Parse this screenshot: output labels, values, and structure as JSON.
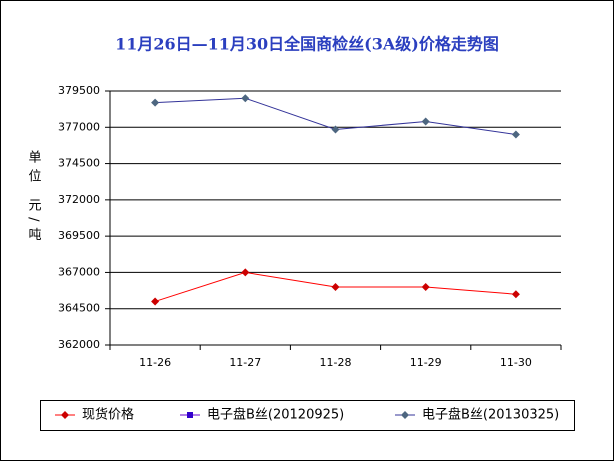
{
  "chart_data": {
    "type": "line",
    "title": "11月26日—11月30日全国商检丝(3A级)价格走势图",
    "y_label": "单位 元/吨",
    "categories": [
      "11-26",
      "11-27",
      "11-28",
      "11-29",
      "11-30"
    ],
    "series": [
      {
        "name": "现货价格",
        "color": "#ff0000",
        "marker_color": "#cc0000",
        "marker": "diamond",
        "values": [
          365000,
          367000,
          366000,
          366000,
          365500
        ]
      },
      {
        "name": "电子盘B丝(20120925)",
        "color": "#6600cc",
        "marker_color": "#3300cc",
        "marker": "square",
        "values": [
          null,
          null,
          null,
          null,
          null
        ]
      },
      {
        "name": "电子盘B丝(20130325)",
        "color": "#333399",
        "marker_color": "#4d6680",
        "marker": "diamond",
        "values": [
          378700,
          379000,
          376850,
          377400,
          376500
        ]
      }
    ],
    "ylim": [
      362000,
      379500
    ],
    "yticks": [
      362000,
      364500,
      367000,
      369500,
      372000,
      374500,
      377000,
      379500
    ],
    "grid": true
  }
}
